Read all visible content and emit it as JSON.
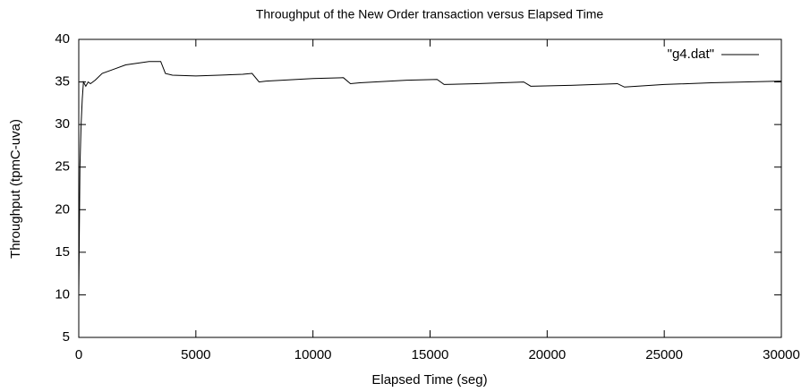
{
  "chart_data": {
    "type": "line",
    "title": "Throughput of the New Order transaction versus Elapsed Time",
    "x_label": "Elapsed Time (seg)",
    "y_label": "Throughput (tpmC-uva)",
    "xlim": [
      0,
      30000
    ],
    "xticks": [
      0,
      5000,
      10000,
      15000,
      20000,
      25000,
      30000
    ],
    "ylim": [
      5,
      40
    ],
    "yticks": [
      5,
      10,
      15,
      20,
      25,
      30,
      35,
      40
    ],
    "grid": false,
    "legend": "top-right",
    "x": [
      0,
      50,
      100,
      150,
      200,
      300,
      400,
      500,
      700,
      1000,
      1500,
      2000,
      2500,
      3000,
      3500,
      3700,
      4000,
      5000,
      6000,
      7000,
      7400,
      7700,
      8000,
      10000,
      11300,
      11600,
      12000,
      14000,
      15300,
      15600,
      17000,
      19000,
      19300,
      21000,
      23000,
      23300,
      25000,
      27000,
      30000
    ],
    "series": [
      {
        "name": "\"g4.dat\"",
        "color": "#000000",
        "values": [
          10,
          25,
          30,
          33,
          35,
          34.5,
          35,
          34.8,
          35.2,
          36,
          36.5,
          37,
          37.2,
          37.4,
          37.4,
          36,
          35.8,
          35.7,
          35.8,
          35.9,
          36,
          35,
          35.1,
          35.4,
          35.5,
          34.8,
          34.9,
          35.2,
          35.3,
          34.7,
          34.8,
          35,
          34.5,
          34.6,
          34.8,
          34.4,
          34.7,
          34.9,
          35.1
        ]
      }
    ]
  }
}
